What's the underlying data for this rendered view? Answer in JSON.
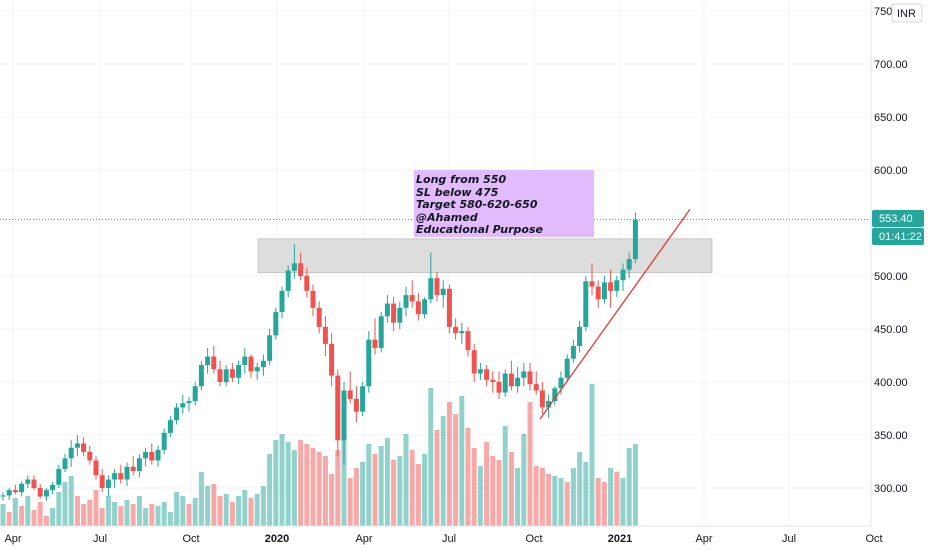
{
  "chart_data": {
    "type": "candlestick",
    "currency": "INR",
    "y_tick_labels": [
      "300.00",
      "350.00",
      "400.00",
      "450.00",
      "500.00",
      "550.00",
      "600.00",
      "650.00",
      "700.00",
      "750.00"
    ],
    "x_tick_labels": [
      {
        "label": "Apr",
        "bold": false
      },
      {
        "label": "Jul",
        "bold": false
      },
      {
        "label": "Oct",
        "bold": false
      },
      {
        "label": "2020",
        "bold": true
      },
      {
        "label": "Apr",
        "bold": false
      },
      {
        "label": "Jul",
        "bold": false
      },
      {
        "label": "Oct",
        "bold": false
      },
      {
        "label": "2021",
        "bold": true
      },
      {
        "label": "Apr",
        "bold": false
      },
      {
        "label": "Jul",
        "bold": false
      },
      {
        "label": "Oct",
        "bold": false
      }
    ],
    "last_price": "553.40",
    "countdown": "01:41:22",
    "annotation_lines": [
      "Long from 550",
      "SL below 475",
      "Target 580-620-650",
      "@Ahamed",
      "Educational Purpose"
    ],
    "resistance_zone": {
      "from": 503,
      "to": 535
    },
    "trendline": {
      "from": 365,
      "to": 563
    },
    "colors": {
      "up": "#26a69a",
      "down": "#ef5350",
      "annotation_bg": "#e1bbfb",
      "zone": "#d9d9d9",
      "trendline": "#e53935",
      "grid": "#f0f3fa"
    },
    "candles": [
      [
        292,
        296,
        288,
        293
      ],
      [
        293,
        300,
        289,
        298
      ],
      [
        298,
        303,
        294,
        296
      ],
      [
        296,
        306,
        292,
        304
      ],
      [
        304,
        312,
        300,
        308
      ],
      [
        308,
        312,
        298,
        300
      ],
      [
        300,
        304,
        290,
        292
      ],
      [
        292,
        300,
        288,
        298
      ],
      [
        298,
        306,
        294,
        303
      ],
      [
        303,
        322,
        300,
        318
      ],
      [
        318,
        332,
        315,
        328
      ],
      [
        328,
        345,
        320,
        338
      ],
      [
        338,
        350,
        330,
        342
      ],
      [
        342,
        348,
        330,
        334
      ],
      [
        334,
        340,
        322,
        326
      ],
      [
        326,
        330,
        308,
        312
      ],
      [
        312,
        318,
        296,
        300
      ],
      [
        300,
        312,
        292,
        308
      ],
      [
        308,
        318,
        300,
        314
      ],
      [
        314,
        322,
        304,
        308
      ],
      [
        308,
        324,
        302,
        320
      ],
      [
        320,
        330,
        312,
        316
      ],
      [
        316,
        332,
        310,
        328
      ],
      [
        328,
        338,
        320,
        334
      ],
      [
        334,
        342,
        322,
        326
      ],
      [
        326,
        340,
        320,
        336
      ],
      [
        336,
        356,
        332,
        352
      ],
      [
        352,
        368,
        348,
        364
      ],
      [
        364,
        380,
        360,
        376
      ],
      [
        376,
        388,
        370,
        380
      ],
      [
        380,
        386,
        372,
        382
      ],
      [
        382,
        400,
        378,
        396
      ],
      [
        396,
        420,
        392,
        416
      ],
      [
        416,
        432,
        408,
        424
      ],
      [
        424,
        434,
        408,
        412
      ],
      [
        412,
        420,
        396,
        400
      ],
      [
        400,
        416,
        396,
        412
      ],
      [
        412,
        418,
        400,
        404
      ],
      [
        404,
        420,
        398,
        416
      ],
      [
        416,
        432,
        408,
        424
      ],
      [
        424,
        426,
        404,
        410
      ],
      [
        410,
        418,
        402,
        414
      ],
      [
        414,
        426,
        406,
        420
      ],
      [
        420,
        450,
        416,
        444
      ],
      [
        444,
        470,
        440,
        466
      ],
      [
        466,
        490,
        460,
        486
      ],
      [
        486,
        510,
        480,
        505
      ],
      [
        505,
        530,
        498,
        512
      ],
      [
        512,
        522,
        496,
        500
      ],
      [
        500,
        508,
        480,
        486
      ],
      [
        486,
        492,
        462,
        470
      ],
      [
        470,
        476,
        446,
        452
      ],
      [
        452,
        462,
        424,
        436
      ],
      [
        436,
        446,
        396,
        406
      ],
      [
        406,
        412,
        330,
        345
      ],
      [
        345,
        400,
        322,
        392
      ],
      [
        392,
        410,
        380,
        384
      ],
      [
        384,
        396,
        362,
        372
      ],
      [
        372,
        400,
        368,
        396
      ],
      [
        396,
        448,
        390,
        440
      ],
      [
        440,
        460,
        426,
        432
      ],
      [
        432,
        466,
        428,
        462
      ],
      [
        462,
        482,
        456,
        474
      ],
      [
        474,
        480,
        448,
        456
      ],
      [
        456,
        476,
        450,
        470
      ],
      [
        470,
        490,
        462,
        482
      ],
      [
        482,
        496,
        470,
        476
      ],
      [
        476,
        484,
        458,
        464
      ],
      [
        464,
        480,
        460,
        478
      ],
      [
        478,
        522,
        474,
        498
      ],
      [
        498,
        504,
        476,
        482
      ],
      [
        482,
        496,
        470,
        488
      ],
      [
        488,
        492,
        446,
        452
      ],
      [
        452,
        460,
        440,
        446
      ],
      [
        446,
        456,
        436,
        448
      ],
      [
        448,
        452,
        424,
        430
      ],
      [
        430,
        436,
        400,
        408
      ],
      [
        408,
        418,
        402,
        412
      ],
      [
        412,
        416,
        396,
        402
      ],
      [
        402,
        410,
        390,
        400
      ],
      [
        400,
        410,
        384,
        390
      ],
      [
        390,
        412,
        386,
        408
      ],
      [
        408,
        420,
        392,
        396
      ],
      [
        396,
        414,
        390,
        404
      ],
      [
        404,
        418,
        396,
        410
      ],
      [
        410,
        418,
        392,
        398
      ],
      [
        398,
        410,
        388,
        392
      ],
      [
        392,
        400,
        370,
        376
      ],
      [
        376,
        388,
        366,
        382
      ],
      [
        382,
        396,
        378,
        394
      ],
      [
        394,
        410,
        388,
        404
      ],
      [
        404,
        426,
        400,
        422
      ],
      [
        422,
        440,
        418,
        434
      ],
      [
        434,
        458,
        428,
        452
      ],
      [
        452,
        500,
        448,
        495
      ],
      [
        495,
        512,
        482,
        490
      ],
      [
        490,
        496,
        470,
        478
      ],
      [
        478,
        500,
        474,
        494
      ],
      [
        494,
        506,
        470,
        486
      ],
      [
        486,
        500,
        480,
        496
      ],
      [
        496,
        512,
        486,
        506
      ],
      [
        506,
        522,
        498,
        516
      ],
      [
        516,
        560,
        512,
        553
      ]
    ],
    "volumes": [
      [
        22,
        0
      ],
      [
        14,
        1
      ],
      [
        28,
        0
      ],
      [
        20,
        1
      ],
      [
        30,
        0
      ],
      [
        16,
        1
      ],
      [
        24,
        1
      ],
      [
        10,
        1
      ],
      [
        18,
        0
      ],
      [
        34,
        0
      ],
      [
        44,
        0
      ],
      [
        50,
        0
      ],
      [
        30,
        1
      ],
      [
        22,
        1
      ],
      [
        26,
        1
      ],
      [
        36,
        1
      ],
      [
        18,
        1
      ],
      [
        30,
        0
      ],
      [
        24,
        0
      ],
      [
        20,
        1
      ],
      [
        26,
        0
      ],
      [
        22,
        1
      ],
      [
        30,
        0
      ],
      [
        18,
        0
      ],
      [
        22,
        1
      ],
      [
        20,
        0
      ],
      [
        24,
        0
      ],
      [
        14,
        0
      ],
      [
        34,
        0
      ],
      [
        30,
        0
      ],
      [
        22,
        1
      ],
      [
        28,
        0
      ],
      [
        54,
        0
      ],
      [
        40,
        0
      ],
      [
        42,
        1
      ],
      [
        30,
        1
      ],
      [
        32,
        0
      ],
      [
        24,
        1
      ],
      [
        30,
        0
      ],
      [
        36,
        0
      ],
      [
        28,
        1
      ],
      [
        32,
        0
      ],
      [
        40,
        0
      ],
      [
        72,
        0
      ],
      [
        86,
        0
      ],
      [
        92,
        0
      ],
      [
        84,
        0
      ],
      [
        76,
        0
      ],
      [
        86,
        1
      ],
      [
        82,
        1
      ],
      [
        78,
        1
      ],
      [
        74,
        1
      ],
      [
        70,
        1
      ],
      [
        52,
        1
      ],
      [
        76,
        1
      ],
      [
        96,
        0
      ],
      [
        48,
        1
      ],
      [
        58,
        1
      ],
      [
        64,
        0
      ],
      [
        82,
        0
      ],
      [
        72,
        1
      ],
      [
        80,
        0
      ],
      [
        88,
        0
      ],
      [
        66,
        1
      ],
      [
        70,
        0
      ],
      [
        92,
        0
      ],
      [
        76,
        1
      ],
      [
        62,
        1
      ],
      [
        72,
        0
      ],
      [
        138,
        0
      ],
      [
        96,
        1
      ],
      [
        110,
        0
      ],
      [
        124,
        1
      ],
      [
        112,
        1
      ],
      [
        130,
        0
      ],
      [
        98,
        1
      ],
      [
        78,
        1
      ],
      [
        60,
        0
      ],
      [
        84,
        1
      ],
      [
        70,
        1
      ],
      [
        66,
        1
      ],
      [
        100,
        0
      ],
      [
        74,
        1
      ],
      [
        58,
        0
      ],
      [
        92,
        0
      ],
      [
        124,
        1
      ],
      [
        60,
        1
      ],
      [
        58,
        1
      ],
      [
        52,
        1
      ],
      [
        50,
        0
      ],
      [
        48,
        0
      ],
      [
        44,
        1
      ],
      [
        58,
        0
      ],
      [
        74,
        0
      ],
      [
        64,
        0
      ],
      [
        142,
        0
      ],
      [
        48,
        1
      ],
      [
        44,
        1
      ],
      [
        58,
        0
      ],
      [
        54,
        1
      ],
      [
        48,
        0
      ],
      [
        78,
        0
      ],
      [
        82,
        0
      ]
    ]
  }
}
